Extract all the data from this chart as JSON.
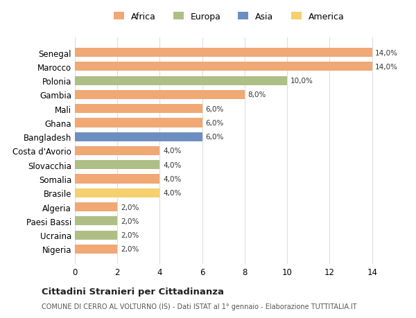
{
  "countries": [
    "Senegal",
    "Marocco",
    "Polonia",
    "Gambia",
    "Mali",
    "Ghana",
    "Bangladesh",
    "Costa d'Avorio",
    "Slovacchia",
    "Somalia",
    "Brasile",
    "Algeria",
    "Paesi Bassi",
    "Ucraina",
    "Nigeria"
  ],
  "values": [
    14.0,
    14.0,
    10.0,
    8.0,
    6.0,
    6.0,
    6.0,
    4.0,
    4.0,
    4.0,
    4.0,
    2.0,
    2.0,
    2.0,
    2.0
  ],
  "continents": [
    "Africa",
    "Africa",
    "Europa",
    "Africa",
    "Africa",
    "Africa",
    "Asia",
    "Africa",
    "Europa",
    "Africa",
    "America",
    "Africa",
    "Europa",
    "Europa",
    "Africa"
  ],
  "colors": {
    "Africa": "#F0A875",
    "Europa": "#AEBF85",
    "Asia": "#6D8FC0",
    "America": "#F5D06E"
  },
  "legend_order": [
    "Africa",
    "Europa",
    "Asia",
    "America"
  ],
  "title": "Cittadini Stranieri per Cittadinanza",
  "subtitle": "COMUNE DI CERRO AL VOLTURNO (IS) - Dati ISTAT al 1° gennaio - Elaborazione TUTTITALIA.IT",
  "xlim": [
    0,
    14
  ],
  "xticks": [
    0,
    2,
    4,
    6,
    8,
    10,
    12,
    14
  ],
  "background_color": "#ffffff",
  "grid_color": "#dddddd",
  "bar_height": 0.65
}
